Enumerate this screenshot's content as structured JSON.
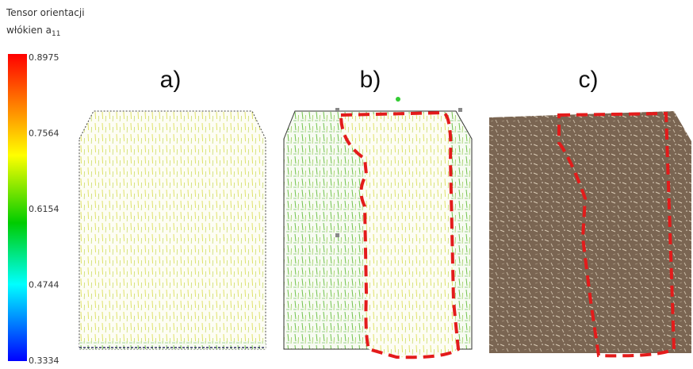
{
  "legend": {
    "title_line1": "Tensor orientacji",
    "title_line2": "włókien a",
    "title_subscript": "11",
    "ticks": [
      "0.8975",
      "0.7564",
      "0.6154",
      "0.4744",
      "0.3334"
    ]
  },
  "panels": [
    {
      "label": "a)"
    },
    {
      "label": "b)"
    },
    {
      "label": "c)"
    }
  ]
}
